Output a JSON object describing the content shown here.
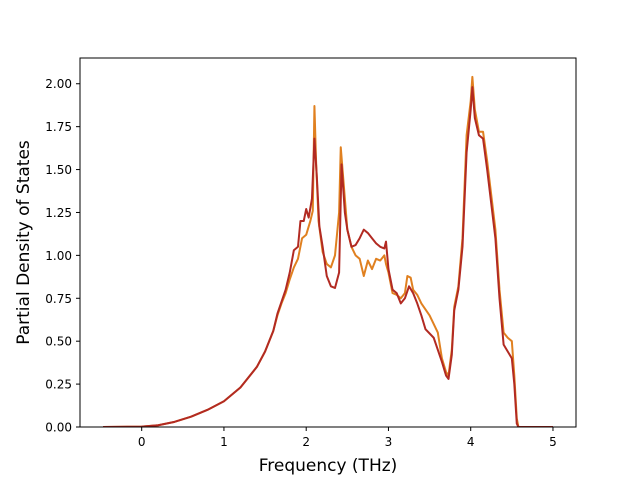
{
  "chart_data": {
    "type": "line",
    "title": "",
    "xlabel": "Frequency (THz)",
    "ylabel": "Partial Density of States",
    "xlim": [
      -0.75,
      5.28
    ],
    "ylim": [
      0.0,
      2.15
    ],
    "xticks": [
      0,
      1,
      2,
      3,
      4,
      5
    ],
    "xtick_labels": [
      "0",
      "1",
      "2",
      "3",
      "4",
      "5"
    ],
    "yticks": [
      0.0,
      0.25,
      0.5,
      0.75,
      1.0,
      1.25,
      1.5,
      1.75,
      2.0
    ],
    "ytick_labels": [
      "0.00",
      "0.25",
      "0.50",
      "0.75",
      "1.00",
      "1.25",
      "1.50",
      "1.75",
      "2.00"
    ],
    "grid": false,
    "legend": "none",
    "series": [
      {
        "color": "#e08020",
        "points": [
          [
            -0.47,
            0.0
          ],
          [
            0.0,
            0.002
          ],
          [
            0.2,
            0.01
          ],
          [
            0.4,
            0.03
          ],
          [
            0.6,
            0.06
          ],
          [
            0.8,
            0.1
          ],
          [
            1.0,
            0.15
          ],
          [
            1.2,
            0.23
          ],
          [
            1.4,
            0.35
          ],
          [
            1.5,
            0.44
          ],
          [
            1.6,
            0.56
          ],
          [
            1.65,
            0.65
          ],
          [
            1.7,
            0.72
          ],
          [
            1.75,
            0.78
          ],
          [
            1.8,
            0.86
          ],
          [
            1.85,
            0.93
          ],
          [
            1.9,
            0.98
          ],
          [
            1.95,
            1.1
          ],
          [
            2.0,
            1.12
          ],
          [
            2.05,
            1.2
          ],
          [
            2.08,
            1.26
          ],
          [
            2.1,
            1.87
          ],
          [
            2.12,
            1.55
          ],
          [
            2.15,
            1.2
          ],
          [
            2.2,
            1.02
          ],
          [
            2.25,
            0.95
          ],
          [
            2.3,
            0.93
          ],
          [
            2.35,
            1.0
          ],
          [
            2.4,
            1.25
          ],
          [
            2.42,
            1.63
          ],
          [
            2.45,
            1.45
          ],
          [
            2.5,
            1.15
          ],
          [
            2.55,
            1.05
          ],
          [
            2.6,
            1.0
          ],
          [
            2.65,
            0.98
          ],
          [
            2.7,
            0.88
          ],
          [
            2.75,
            0.97
          ],
          [
            2.8,
            0.92
          ],
          [
            2.85,
            0.98
          ],
          [
            2.9,
            0.97
          ],
          [
            2.95,
            1.0
          ],
          [
            2.97,
            0.95
          ],
          [
            3.0,
            0.9
          ],
          [
            3.05,
            0.78
          ],
          [
            3.1,
            0.77
          ],
          [
            3.15,
            0.75
          ],
          [
            3.2,
            0.78
          ],
          [
            3.23,
            0.88
          ],
          [
            3.27,
            0.87
          ],
          [
            3.3,
            0.8
          ],
          [
            3.35,
            0.77
          ],
          [
            3.4,
            0.72
          ],
          [
            3.5,
            0.65
          ],
          [
            3.6,
            0.55
          ],
          [
            3.65,
            0.4
          ],
          [
            3.7,
            0.32
          ],
          [
            3.73,
            0.3
          ],
          [
            3.77,
            0.45
          ],
          [
            3.8,
            0.7
          ],
          [
            3.85,
            0.82
          ],
          [
            3.9,
            1.1
          ],
          [
            3.95,
            1.7
          ],
          [
            4.0,
            1.9
          ],
          [
            4.02,
            2.04
          ],
          [
            4.05,
            1.85
          ],
          [
            4.1,
            1.72
          ],
          [
            4.15,
            1.72
          ],
          [
            4.2,
            1.55
          ],
          [
            4.25,
            1.35
          ],
          [
            4.3,
            1.15
          ],
          [
            4.35,
            0.8
          ],
          [
            4.4,
            0.55
          ],
          [
            4.45,
            0.52
          ],
          [
            4.5,
            0.5
          ],
          [
            4.53,
            0.3
          ],
          [
            4.56,
            0.05
          ],
          [
            4.58,
            0.0
          ],
          [
            5.0,
            0.0
          ]
        ]
      },
      {
        "color": "#b22a22",
        "points": [
          [
            -0.47,
            0.0
          ],
          [
            0.0,
            0.002
          ],
          [
            0.2,
            0.01
          ],
          [
            0.4,
            0.03
          ],
          [
            0.6,
            0.06
          ],
          [
            0.8,
            0.1
          ],
          [
            1.0,
            0.15
          ],
          [
            1.2,
            0.23
          ],
          [
            1.4,
            0.35
          ],
          [
            1.5,
            0.44
          ],
          [
            1.6,
            0.56
          ],
          [
            1.65,
            0.66
          ],
          [
            1.7,
            0.73
          ],
          [
            1.75,
            0.8
          ],
          [
            1.8,
            0.9
          ],
          [
            1.85,
            1.03
          ],
          [
            1.9,
            1.05
          ],
          [
            1.93,
            1.2
          ],
          [
            1.97,
            1.2
          ],
          [
            2.0,
            1.27
          ],
          [
            2.03,
            1.22
          ],
          [
            2.07,
            1.33
          ],
          [
            2.1,
            1.68
          ],
          [
            2.13,
            1.45
          ],
          [
            2.16,
            1.17
          ],
          [
            2.2,
            1.05
          ],
          [
            2.25,
            0.88
          ],
          [
            2.3,
            0.82
          ],
          [
            2.35,
            0.81
          ],
          [
            2.4,
            0.9
          ],
          [
            2.43,
            1.53
          ],
          [
            2.47,
            1.25
          ],
          [
            2.5,
            1.15
          ],
          [
            2.55,
            1.05
          ],
          [
            2.6,
            1.06
          ],
          [
            2.65,
            1.1
          ],
          [
            2.7,
            1.15
          ],
          [
            2.75,
            1.13
          ],
          [
            2.8,
            1.1
          ],
          [
            2.85,
            1.07
          ],
          [
            2.9,
            1.05
          ],
          [
            2.95,
            1.04
          ],
          [
            2.97,
            1.08
          ],
          [
            3.0,
            0.92
          ],
          [
            3.05,
            0.8
          ],
          [
            3.1,
            0.78
          ],
          [
            3.15,
            0.72
          ],
          [
            3.2,
            0.75
          ],
          [
            3.25,
            0.82
          ],
          [
            3.3,
            0.78
          ],
          [
            3.35,
            0.72
          ],
          [
            3.4,
            0.65
          ],
          [
            3.45,
            0.57
          ],
          [
            3.55,
            0.52
          ],
          [
            3.65,
            0.38
          ],
          [
            3.7,
            0.3
          ],
          [
            3.73,
            0.28
          ],
          [
            3.77,
            0.42
          ],
          [
            3.8,
            0.68
          ],
          [
            3.85,
            0.8
          ],
          [
            3.9,
            1.05
          ],
          [
            3.95,
            1.6
          ],
          [
            4.0,
            1.85
          ],
          [
            4.02,
            1.98
          ],
          [
            4.05,
            1.8
          ],
          [
            4.1,
            1.7
          ],
          [
            4.15,
            1.68
          ],
          [
            4.2,
            1.5
          ],
          [
            4.25,
            1.3
          ],
          [
            4.3,
            1.1
          ],
          [
            4.35,
            0.75
          ],
          [
            4.4,
            0.48
          ],
          [
            4.45,
            0.44
          ],
          [
            4.5,
            0.4
          ],
          [
            4.53,
            0.25
          ],
          [
            4.56,
            0.02
          ],
          [
            4.58,
            0.0
          ],
          [
            5.0,
            0.0
          ]
        ]
      }
    ]
  }
}
